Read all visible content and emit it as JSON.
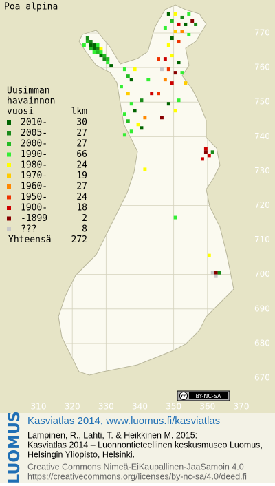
{
  "title": "Poa alpina",
  "legend": {
    "heading": [
      "Uusimman",
      "havainnon",
      "vuosi"
    ],
    "count_heading": "lkm",
    "items": [
      {
        "label": "2010-",
        "count": 30,
        "color": "#006400"
      },
      {
        "label": "2005-",
        "count": 27,
        "color": "#1a8a1a"
      },
      {
        "label": "2000-",
        "count": 27,
        "color": "#22bb22"
      },
      {
        "label": "1990-",
        "count": 66,
        "color": "#33ee33"
      },
      {
        "label": "1980-",
        "count": 24,
        "color": "#ffff00"
      },
      {
        "label": "1970-",
        "count": 19,
        "color": "#ffcc00"
      },
      {
        "label": "1960-",
        "count": 27,
        "color": "#ff8800"
      },
      {
        "label": "1950-",
        "count": 24,
        "color": "#ee3300"
      },
      {
        "label": "1900-",
        "count": 18,
        "color": "#cc0000"
      },
      {
        "label": "-1899",
        "count": 2,
        "color": "#880000"
      },
      {
        "label": "???",
        "count": 8,
        "color": "#c8c8c8"
      }
    ],
    "total_label": "Yhteensä",
    "total": 272
  },
  "map": {
    "xticks": [
      310,
      320,
      330,
      340,
      350,
      360,
      370
    ],
    "yticks": [
      670,
      680,
      690,
      700,
      710,
      720,
      730,
      740,
      750,
      760,
      770
    ],
    "squares": [
      [
        324,
        767,
        2
      ],
      [
        325,
        767,
        1
      ],
      [
        326,
        766,
        0
      ],
      [
        327,
        766,
        3
      ],
      [
        325,
        765,
        2
      ],
      [
        326,
        765,
        0
      ],
      [
        327,
        765,
        1
      ],
      [
        328,
        764,
        3
      ],
      [
        327,
        764,
        2
      ],
      [
        328,
        763,
        0
      ],
      [
        329,
        763,
        2
      ],
      [
        329,
        762,
        1
      ],
      [
        330,
        761,
        3
      ],
      [
        331,
        760,
        0
      ],
      [
        326,
        764,
        3
      ],
      [
        325,
        766,
        0
      ],
      [
        324,
        768,
        1
      ],
      [
        323,
        766,
        3
      ],
      [
        330,
        762,
        2
      ],
      [
        328,
        765,
        4
      ],
      [
        348,
        775,
        0
      ],
      [
        350,
        775,
        4
      ],
      [
        352,
        774,
        1
      ],
      [
        354,
        775,
        3
      ],
      [
        349,
        773,
        2
      ],
      [
        351,
        772,
        8
      ],
      [
        353,
        772,
        0
      ],
      [
        355,
        773,
        9
      ],
      [
        347,
        771,
        3
      ],
      [
        350,
        770,
        5
      ],
      [
        352,
        770,
        6
      ],
      [
        349,
        768,
        0
      ],
      [
        351,
        767,
        7
      ],
      [
        354,
        769,
        3
      ],
      [
        356,
        772,
        1
      ],
      [
        348,
        766,
        4
      ],
      [
        345,
        762,
        7
      ],
      [
        347,
        762,
        8
      ],
      [
        349,
        763,
        4
      ],
      [
        351,
        761,
        0
      ],
      [
        346,
        759,
        10
      ],
      [
        348,
        759,
        7
      ],
      [
        350,
        758,
        9
      ],
      [
        352,
        758,
        3
      ],
      [
        347,
        756,
        6
      ],
      [
        349,
        755,
        8
      ],
      [
        353,
        755,
        5
      ],
      [
        345,
        752,
        7
      ],
      [
        351,
        750,
        3
      ],
      [
        348,
        749,
        0
      ],
      [
        350,
        747,
        4
      ],
      [
        346,
        745,
        9
      ],
      [
        335,
        759,
        3
      ],
      [
        336,
        757,
        2
      ],
      [
        337,
        756,
        0
      ],
      [
        338,
        759,
        4
      ],
      [
        334,
        754,
        3
      ],
      [
        336,
        752,
        5
      ],
      [
        337,
        749,
        3
      ],
      [
        338,
        747,
        0
      ],
      [
        340,
        750,
        1
      ],
      [
        335,
        746,
        3
      ],
      [
        336,
        744,
        2
      ],
      [
        339,
        743,
        4
      ],
      [
        341,
        745,
        6
      ],
      [
        337,
        741,
        3
      ],
      [
        340,
        742,
        0
      ],
      [
        335,
        740,
        3
      ],
      [
        342,
        756,
        3
      ],
      [
        343,
        752,
        8
      ],
      [
        359,
        736,
        8
      ],
      [
        359,
        735,
        9
      ],
      [
        360,
        734,
        8
      ],
      [
        358,
        733,
        8
      ],
      [
        361,
        735,
        1
      ],
      [
        341,
        730,
        4
      ],
      [
        350,
        716,
        3
      ],
      [
        360,
        705,
        4
      ],
      [
        361,
        700,
        10
      ],
      [
        362,
        700,
        9
      ],
      [
        362,
        699,
        10
      ],
      [
        363,
        700,
        1
      ]
    ]
  },
  "cc_badge": "BY-NC-SA",
  "credits": {
    "logo": "LUOMUS",
    "link": "Kasviatlas 2014, www.luomus.fi/kasviatlas",
    "citation": [
      "Lampinen, R., Lahti, T. & Heikkinen M. 2015:",
      "Kasviatlas 2014 – Luonnontieteellinen keskusmuseo Luomus,",
      "Helsingin Yliopisto, Helsinki."
    ],
    "license": [
      "Creative Commons Nimeä-EiKaupallinen-JaaSamoin 4.0",
      "https://creativecommons.org/licenses/by-nc-sa/4.0/deed.fi"
    ]
  }
}
